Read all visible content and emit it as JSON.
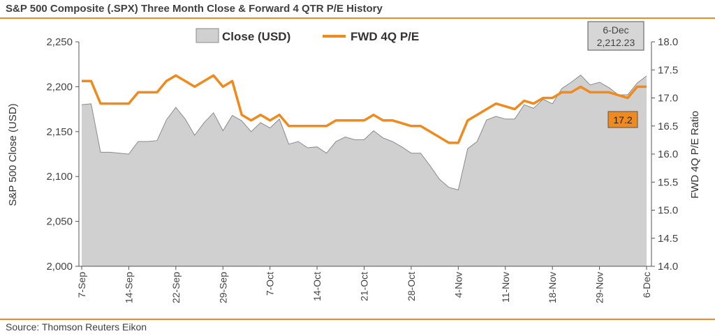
{
  "header": {
    "title": "S&P 500 Composite (.SPX) Three Month Close & Forward 4 QTR P/E History"
  },
  "footer": {
    "source": "Source: Thomson Reuters Eikon"
  },
  "colors": {
    "area": "#d0d0d0",
    "area_stroke": "#8a8a8a",
    "line": "#f08a1c",
    "callout_bg": "#d6d6d6",
    "callout_orange": "#f08a1c"
  },
  "legend": {
    "close_label": "Close (USD)",
    "pe_label": "FWD 4Q P/E"
  },
  "callouts": {
    "close_date": "6-Dec",
    "close_value": "2,212.23",
    "pe_value": "17.2"
  },
  "chart_data": {
    "type": "area+line",
    "title": "S&P 500 Composite (.SPX) Three Month Close & Forward 4 QTR P/E History",
    "ylabel": "S&P 500 Close (USD)",
    "y2label": "FWD 4Q P/E Ratio",
    "ylim": [
      2000,
      2250
    ],
    "y2lim": [
      14.0,
      18.0
    ],
    "yticks": [
      "2,000",
      "2,050",
      "2,100",
      "2,150",
      "2,200",
      "2,250"
    ],
    "y2ticks": [
      "14.0",
      "14.5",
      "15.0",
      "15.5",
      "16.0",
      "16.5",
      "17.0",
      "17.5",
      "18.0"
    ],
    "x_tick_labels": [
      "7-Sep",
      "14-Sep",
      "22-Sep",
      "29-Sep",
      "7-Oct",
      "14-Oct",
      "21-Oct",
      "28-Oct",
      "4-Nov",
      "11-Nov",
      "18-Nov",
      "29-Nov",
      "6-Dec"
    ],
    "x_tick_index": [
      0,
      5,
      10,
      15,
      20,
      25,
      30,
      35,
      40,
      45,
      50,
      55,
      60
    ],
    "series": [
      {
        "name": "Close (USD)",
        "type": "area",
        "values": [
          2180,
          2181,
          2127,
          2127,
          2126,
          2125,
          2139,
          2139,
          2140,
          2163,
          2177,
          2164,
          2146,
          2160,
          2171,
          2151,
          2168,
          2162,
          2150,
          2160,
          2154,
          2164,
          2136,
          2139,
          2132,
          2133,
          2126,
          2139,
          2144,
          2141,
          2141,
          2151,
          2143,
          2139,
          2133,
          2126,
          2126,
          2112,
          2097,
          2088,
          2085,
          2131,
          2139,
          2163,
          2167,
          2164,
          2164,
          2180,
          2176,
          2186,
          2181,
          2198,
          2205,
          2213,
          2202,
          2205,
          2199,
          2191,
          2191,
          2204,
          2212
        ]
      },
      {
        "name": "FWD 4Q P/E",
        "type": "line",
        "values": [
          17.3,
          17.3,
          16.9,
          16.9,
          16.9,
          16.9,
          17.1,
          17.1,
          17.1,
          17.3,
          17.4,
          17.3,
          17.2,
          17.3,
          17.4,
          17.2,
          17.3,
          16.7,
          16.6,
          16.7,
          16.6,
          16.7,
          16.5,
          16.5,
          16.5,
          16.5,
          16.5,
          16.6,
          16.6,
          16.6,
          16.6,
          16.7,
          16.6,
          16.6,
          16.55,
          16.5,
          16.5,
          16.4,
          16.3,
          16.2,
          16.2,
          16.6,
          16.7,
          16.8,
          16.9,
          16.85,
          16.8,
          16.95,
          16.9,
          17.0,
          17.0,
          17.1,
          17.1,
          17.2,
          17.1,
          17.1,
          17.1,
          17.05,
          17.0,
          17.2,
          17.2
        ]
      }
    ],
    "grid": false,
    "legend_position": "top-center"
  }
}
